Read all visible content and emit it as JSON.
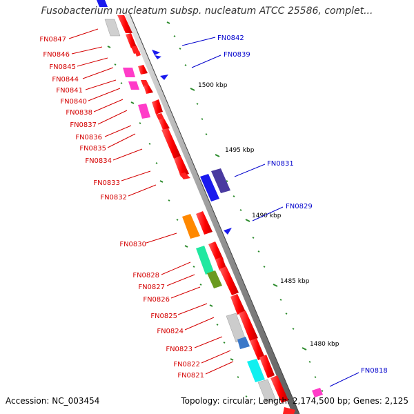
{
  "title": "Fusobacterium nucleatum subsp. nucleatum ATCC 25586, complet...",
  "footer": {
    "accession": "Accession: NC_003454",
    "topology": "Topology: circular; Length: 2,174,500 bp; Genes: 2,125"
  },
  "colors": {
    "reverse_gene_label": "#d40000",
    "forward_gene_label": "#0000cc",
    "backbone": "#a0a0a0",
    "tick_major": "#2a8a2a"
  },
  "scale_labels": [
    "1500 kbp",
    "1495 kbp",
    "1490 kbp",
    "1485 kbp",
    "1480 kbp"
  ],
  "genes_left": [
    {
      "label": "FN0847"
    },
    {
      "label": "FN0846"
    },
    {
      "label": "FN0845"
    },
    {
      "label": "FN0844"
    },
    {
      "label": "FN0841"
    },
    {
      "label": "FN0840"
    },
    {
      "label": "FN0838"
    },
    {
      "label": "FN0837"
    },
    {
      "label": "FN0836"
    },
    {
      "label": "FN0835"
    },
    {
      "label": "FN0834"
    },
    {
      "label": "FN0833"
    },
    {
      "label": "FN0832"
    },
    {
      "label": "FN0830"
    },
    {
      "label": "FN0828"
    },
    {
      "label": "FN0827"
    },
    {
      "label": "FN0826"
    },
    {
      "label": "FN0825"
    },
    {
      "label": "FN0824"
    },
    {
      "label": "FN0823"
    },
    {
      "label": "FN0822"
    },
    {
      "label": "FN0821"
    }
  ],
  "genes_right": [
    {
      "label": "FN0842"
    },
    {
      "label": "FN0839"
    },
    {
      "label": "FN0831"
    },
    {
      "label": "FN0829"
    },
    {
      "label": "FN0818"
    }
  ]
}
